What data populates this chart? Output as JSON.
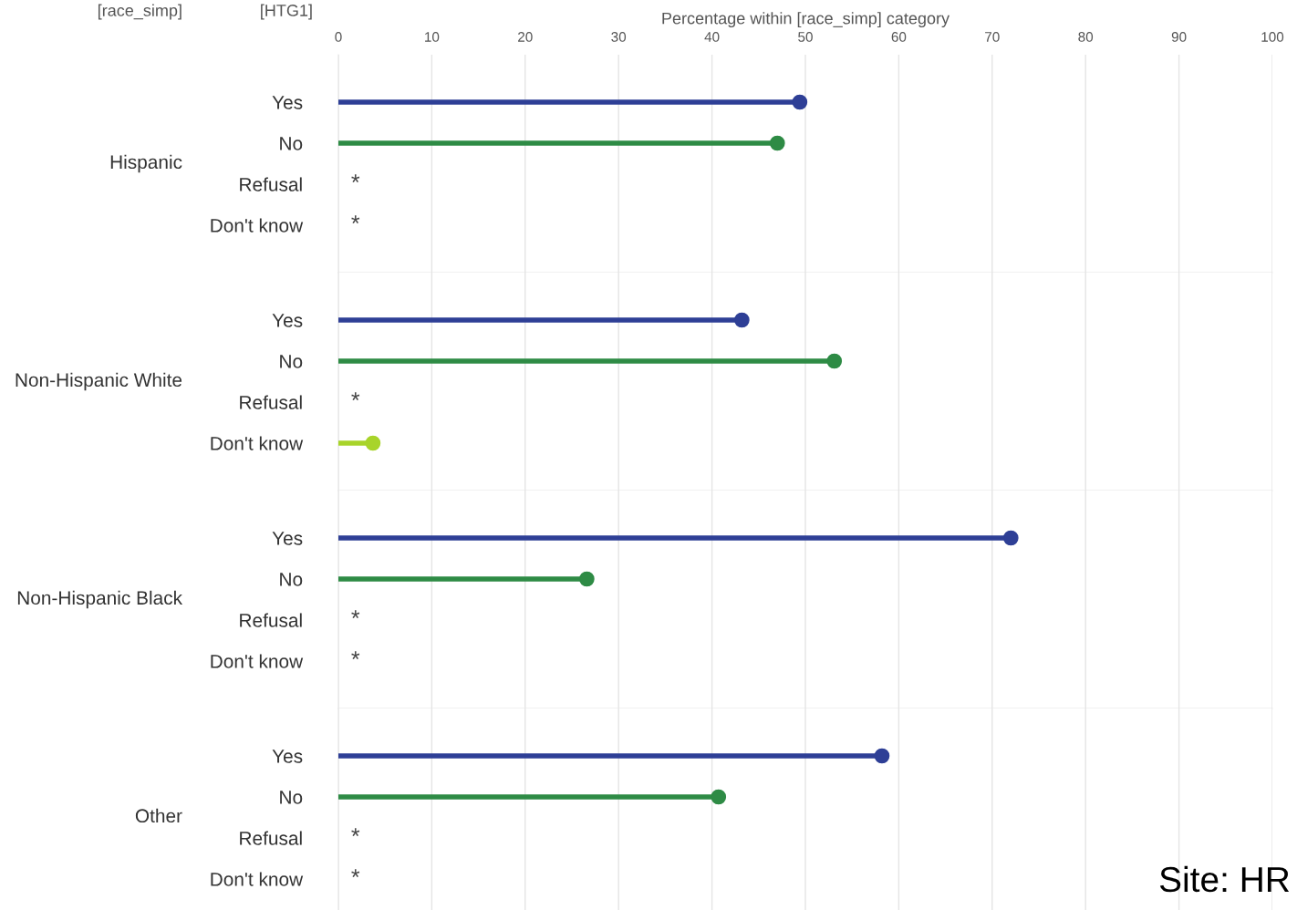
{
  "chart_data": [
    {
      "type": "lollipop",
      "orientation": "horizontal",
      "title": "Hispanic",
      "xlabel": "Percentage within [race_simp] category",
      "annotations": [
        "[race_simp]",
        "[HTG1]"
      ],
      "categories": [
        "Yes",
        "No",
        "Refusal",
        "Don't know"
      ],
      "values": [
        49.4,
        47.0,
        null,
        null
      ],
      "colors": [
        "#2e3f96",
        "#2e8b45",
        null,
        null
      ],
      "value_labels": [
        null,
        null,
        "*",
        "*"
      ],
      "xlim": [
        0,
        100
      ],
      "xticks": [
        0,
        10,
        20,
        30,
        40,
        50,
        60,
        70,
        80,
        90,
        100
      ],
      "grid": "x",
      "marker": "circle"
    },
    {
      "type": "lollipop",
      "orientation": "horizontal",
      "title": "Non-Hispanic White",
      "categories": [
        "Yes",
        "No",
        "Refusal",
        "Don't know"
      ],
      "values": [
        43.2,
        53.1,
        null,
        3.7
      ],
      "colors": [
        "#2e3f96",
        "#2e8b45",
        null,
        "#a8d42a"
      ],
      "value_labels": [
        null,
        null,
        "*",
        null
      ],
      "xlim": [
        0,
        100
      ],
      "xticks": [
        0,
        10,
        20,
        30,
        40,
        50,
        60,
        70,
        80,
        90,
        100
      ],
      "tick_labels": "y",
      "grid": "x",
      "marker": "circle"
    },
    {
      "type": "lollipop",
      "orientation": "horizontal",
      "title": "Non-Hispanic Black",
      "categories": [
        "Yes",
        "No",
        "Refusal",
        "Don't know"
      ],
      "values": [
        72.0,
        26.6,
        null,
        null
      ],
      "colors": [
        "#2e3f96",
        "#2e8b45",
        null,
        null
      ],
      "value_labels": [
        null,
        null,
        "*",
        "*"
      ],
      "xlim": [
        0,
        100
      ],
      "xticks": [
        0,
        10,
        20,
        30,
        40,
        50,
        60,
        70,
        80,
        90,
        100
      ],
      "tick_labels": "y",
      "grid": "x",
      "marker": "circle"
    },
    {
      "type": "lollipop",
      "orientation": "horizontal",
      "title": "Other",
      "annotations": [
        "Site: HR"
      ],
      "categories": [
        "Yes",
        "No",
        "Refusal",
        "Don't know"
      ],
      "values": [
        58.2,
        40.7,
        null,
        null
      ],
      "colors": [
        "#2e3f96",
        "#2e8b45",
        null,
        null
      ],
      "value_labels": [
        null,
        null,
        "*",
        "*"
      ],
      "xlim": [
        0,
        100
      ],
      "xticks": [
        0,
        10,
        20,
        30,
        40,
        50,
        60,
        70,
        80,
        90,
        100
      ],
      "tick_labels": "y",
      "grid": "x",
      "marker": "circle"
    }
  ]
}
